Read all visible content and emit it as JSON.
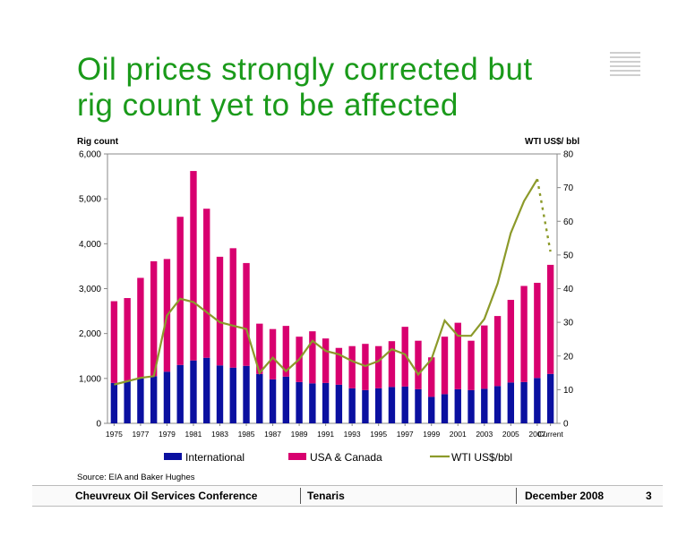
{
  "slide": {
    "title_line1": "Oil prices strongly corrected but",
    "title_line2": "rig count yet to be affected",
    "source": "Source:  EIA and Baker Hughes"
  },
  "footer": {
    "left": "Cheuvreux Oil Services Conference",
    "center": "Tenaris",
    "date": "December 2008",
    "page": "3"
  },
  "colors": {
    "title": "#1a9a1a",
    "international": "#0a10a0",
    "usa_canada": "#d8006f",
    "wti": "#8c9a2a"
  },
  "chart_data": {
    "type": "bar",
    "stacked": true,
    "ylabel_left": "Rig count",
    "ylabel_right": "WTI  US$/ bbl",
    "ylim_left": [
      0,
      6000
    ],
    "ylim_right": [
      0,
      80
    ],
    "yticks_left": [
      "0",
      "1,000",
      "2,000",
      "3,000",
      "4,000",
      "5,000",
      "6,000"
    ],
    "yticks_right": [
      "0",
      "10",
      "20",
      "30",
      "40",
      "50",
      "60",
      "70",
      "80"
    ],
    "categories": [
      "1975",
      "1976",
      "1977",
      "1978",
      "1979",
      "1980",
      "1981",
      "1982",
      "1983",
      "1984",
      "1985",
      "1986",
      "1987",
      "1988",
      "1989",
      "1990",
      "1991",
      "1992",
      "1993",
      "1994",
      "1995",
      "1996",
      "1997",
      "1998",
      "1999",
      "2000",
      "2001",
      "2002",
      "2003",
      "2004",
      "2005",
      "2006",
      "2007",
      "Current"
    ],
    "xtick_labels": [
      "1975",
      "1977",
      "1979",
      "1981",
      "1983",
      "1985",
      "1987",
      "1989",
      "1991",
      "1993",
      "1995",
      "1997",
      "1999",
      "2001",
      "2003",
      "2005",
      "2007",
      "Current"
    ],
    "series": [
      {
        "name": "International",
        "axis": "left",
        "values": [
          900,
          950,
          1000,
          1050,
          1150,
          1300,
          1400,
          1460,
          1290,
          1240,
          1280,
          1100,
          980,
          1040,
          920,
          890,
          900,
          860,
          780,
          740,
          780,
          810,
          820,
          760,
          590,
          650,
          760,
          740,
          770,
          830,
          910,
          920,
          1010,
          1100
        ]
      },
      {
        "name": "USA & Canada",
        "axis": "left",
        "values": [
          1820,
          1840,
          2240,
          2560,
          2510,
          3300,
          4220,
          3320,
          2420,
          2660,
          2290,
          1120,
          1120,
          1130,
          1010,
          1160,
          990,
          820,
          940,
          1030,
          940,
          1020,
          1330,
          1080,
          880,
          1280,
          1480,
          1100,
          1410,
          1560,
          1840,
          2140,
          2120,
          2430
        ]
      },
      {
        "name": "WTI US$/bbl",
        "axis": "right",
        "type": "line",
        "values": [
          11.5,
          12.5,
          13.5,
          14,
          32,
          37,
          36,
          33,
          30,
          29,
          28,
          15,
          19.5,
          15.5,
          19,
          24.5,
          21.5,
          20.5,
          18.5,
          17,
          18.5,
          22,
          20.5,
          14.5,
          19,
          30.5,
          26,
          26,
          31,
          41.5,
          56.5,
          66,
          72.5,
          51
        ],
        "dashed_from_index": 32
      }
    ],
    "legend_position": "bottom",
    "grid": false
  }
}
